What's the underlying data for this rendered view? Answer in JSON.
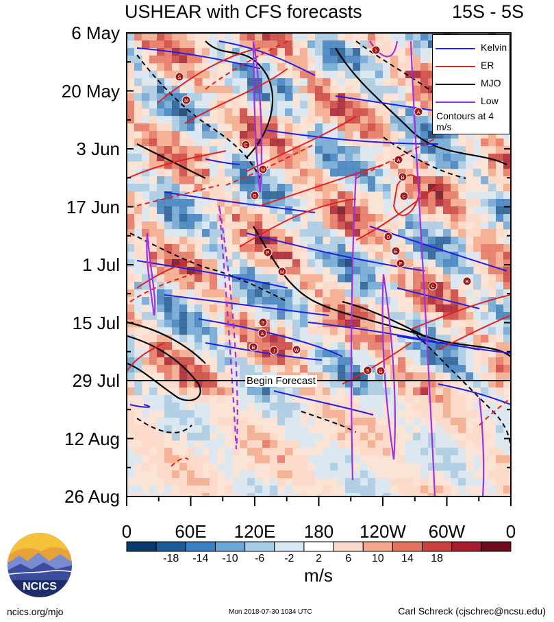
{
  "title": "USHEAR with CFS forecasts",
  "region": "15S - 5S",
  "chart_data": {
    "type": "heatmap",
    "title": "USHEAR with CFS forecasts",
    "subtitle": "15S - 5S",
    "y_ticks": [
      "6 May",
      "20 May",
      "3 Jun",
      "17 Jun",
      "1 Jul",
      "15 Jul",
      "29 Jul",
      "12 Aug",
      "26 Aug"
    ],
    "x_ticks": [
      "0",
      "60E",
      "120E",
      "180",
      "120W",
      "60W",
      "0"
    ],
    "xlim": [
      0,
      360
    ],
    "colorbar": {
      "labels": [
        "-18",
        "-14",
        "-10",
        "-6",
        "-2",
        "2",
        "6",
        "10",
        "14",
        "18"
      ],
      "colors": [
        "#083a6b",
        "#1c5b98",
        "#3a7fbf",
        "#6aa7d6",
        "#a6cbe6",
        "#d6e8f4",
        "#ffffff",
        "#fbd9c8",
        "#f2a98b",
        "#e47462",
        "#c9423e",
        "#a51d2d",
        "#6e0b1d"
      ],
      "units": "m/s"
    },
    "legend": {
      "placement": "top-right",
      "entries": [
        {
          "name": "Kelvin",
          "color": "#1f1fe6"
        },
        {
          "name": "ER",
          "color": "#e61f1f"
        },
        {
          "name": "MJO",
          "color": "#000000"
        },
        {
          "name": "Low",
          "color": "#a030e0"
        }
      ],
      "note": "Contours at 4 m/s"
    },
    "annotation": "Begin Forecast",
    "storm_labels": [
      "I",
      "A",
      "S",
      "M",
      "E",
      "M",
      "A",
      "B",
      "G",
      "C",
      "D",
      "E",
      "F",
      "P",
      "M",
      "C",
      "B",
      "S",
      "A",
      "B",
      "J",
      "W",
      "9",
      "G"
    ]
  },
  "footer": {
    "left": "ncics.org/mjo",
    "middle": "Mon 2018-07-30 1034 UTC",
    "right": "Carl Schreck (cjschrec@ncsu.edu)"
  },
  "logo_text": "NCICS"
}
